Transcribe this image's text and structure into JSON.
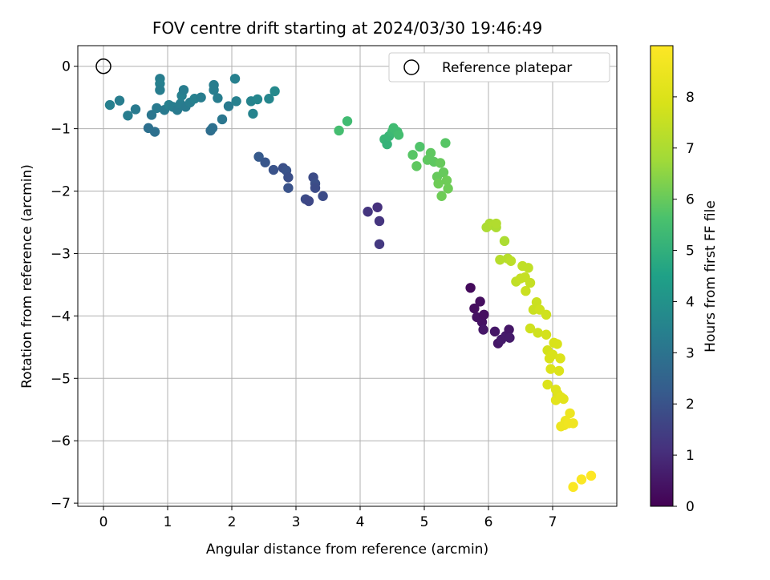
{
  "chart_data": {
    "type": "scatter",
    "title": "FOV centre drift starting at 2024/03/30 19:46:49",
    "xlabel": "Angular distance from reference (arcmin)",
    "ylabel": "Rotation from reference (arcmin)",
    "xlim": [
      -0.4,
      8.0
    ],
    "ylim": [
      -7.05,
      0.33
    ],
    "xticks": [
      0,
      1,
      2,
      3,
      4,
      5,
      6,
      7
    ],
    "yticks": [
      0,
      -1,
      -2,
      -3,
      -4,
      -5,
      -6,
      -7
    ],
    "grid": true,
    "legend": {
      "position": "top-right",
      "entries": [
        "Reference platepar"
      ]
    },
    "reference_point": {
      "x": 0,
      "y": 0,
      "marker": "hollow-circle"
    },
    "colorbar": {
      "label": "Hours from first FF file",
      "range": [
        0,
        9
      ],
      "ticks": [
        0,
        1,
        2,
        3,
        4,
        5,
        6,
        7,
        8
      ],
      "colormap": "viridis"
    },
    "points": [
      {
        "x": 0.1,
        "y": -0.62,
        "h": 3.4
      },
      {
        "x": 0.25,
        "y": -0.55,
        "h": 3.3
      },
      {
        "x": 0.38,
        "y": -0.79,
        "h": 3.3
      },
      {
        "x": 0.5,
        "y": -0.69,
        "h": 3.2
      },
      {
        "x": 0.7,
        "y": -0.99,
        "h": 2.9
      },
      {
        "x": 0.75,
        "y": -0.78,
        "h": 3.1
      },
      {
        "x": 0.8,
        "y": -1.05,
        "h": 2.9
      },
      {
        "x": 0.83,
        "y": -0.67,
        "h": 3.2
      },
      {
        "x": 0.88,
        "y": -0.2,
        "h": 3.3
      },
      {
        "x": 0.88,
        "y": -0.28,
        "h": 3.4
      },
      {
        "x": 0.88,
        "y": -0.38,
        "h": 3.3
      },
      {
        "x": 0.95,
        "y": -0.7,
        "h": 3.2
      },
      {
        "x": 1.02,
        "y": -0.62,
        "h": 3.4
      },
      {
        "x": 1.08,
        "y": -0.65,
        "h": 3.3
      },
      {
        "x": 1.15,
        "y": -0.7,
        "h": 3.2
      },
      {
        "x": 1.2,
        "y": -0.6,
        "h": 3.3
      },
      {
        "x": 1.22,
        "y": -0.47,
        "h": 3.4
      },
      {
        "x": 1.25,
        "y": -0.38,
        "h": 3.3
      },
      {
        "x": 1.28,
        "y": -0.65,
        "h": 3.2
      },
      {
        "x": 1.35,
        "y": -0.58,
        "h": 3.3
      },
      {
        "x": 1.42,
        "y": -0.52,
        "h": 3.4
      },
      {
        "x": 1.52,
        "y": -0.5,
        "h": 3.3
      },
      {
        "x": 1.67,
        "y": -1.03,
        "h": 2.8
      },
      {
        "x": 1.7,
        "y": -0.99,
        "h": 2.9
      },
      {
        "x": 1.72,
        "y": -0.3,
        "h": 3.3
      },
      {
        "x": 1.72,
        "y": -0.38,
        "h": 3.3
      },
      {
        "x": 1.78,
        "y": -0.51,
        "h": 3.3
      },
      {
        "x": 1.85,
        "y": -0.85,
        "h": 3.1
      },
      {
        "x": 1.95,
        "y": -0.64,
        "h": 3.2
      },
      {
        "x": 2.05,
        "y": -0.2,
        "h": 3.4
      },
      {
        "x": 2.07,
        "y": -0.56,
        "h": 3.4
      },
      {
        "x": 2.3,
        "y": -0.56,
        "h": 3.5
      },
      {
        "x": 2.33,
        "y": -0.76,
        "h": 3.5
      },
      {
        "x": 2.4,
        "y": -0.53,
        "h": 3.6
      },
      {
        "x": 2.58,
        "y": -0.52,
        "h": 3.6
      },
      {
        "x": 2.67,
        "y": -0.4,
        "h": 3.7
      },
      {
        "x": 2.42,
        "y": -1.45,
        "h": 2.2
      },
      {
        "x": 2.52,
        "y": -1.54,
        "h": 2.1
      },
      {
        "x": 2.65,
        "y": -1.66,
        "h": 2.0
      },
      {
        "x": 2.8,
        "y": -1.63,
        "h": 1.9
      },
      {
        "x": 2.85,
        "y": -1.67,
        "h": 2.0
      },
      {
        "x": 2.88,
        "y": -1.78,
        "h": 1.9
      },
      {
        "x": 2.88,
        "y": -1.95,
        "h": 2.0
      },
      {
        "x": 3.15,
        "y": -2.13,
        "h": 1.8
      },
      {
        "x": 3.2,
        "y": -2.16,
        "h": 1.7
      },
      {
        "x": 3.27,
        "y": -1.78,
        "h": 1.8
      },
      {
        "x": 3.3,
        "y": -1.88,
        "h": 1.9
      },
      {
        "x": 3.3,
        "y": -1.95,
        "h": 1.8
      },
      {
        "x": 3.42,
        "y": -2.08,
        "h": 1.8
      },
      {
        "x": 4.12,
        "y": -2.33,
        "h": 1.2
      },
      {
        "x": 4.27,
        "y": -2.26,
        "h": 1.1
      },
      {
        "x": 4.3,
        "y": -2.48,
        "h": 1.2
      },
      {
        "x": 4.3,
        "y": -2.85,
        "h": 1.3
      },
      {
        "x": 3.67,
        "y": -1.03,
        "h": 5.5
      },
      {
        "x": 3.8,
        "y": -0.88,
        "h": 5.4
      },
      {
        "x": 4.38,
        "y": -1.17,
        "h": 5.2
      },
      {
        "x": 4.42,
        "y": -1.25,
        "h": 5.1
      },
      {
        "x": 4.45,
        "y": -1.12,
        "h": 5.2
      },
      {
        "x": 4.5,
        "y": -1.05,
        "h": 5.3
      },
      {
        "x": 4.52,
        "y": -0.99,
        "h": 5.4
      },
      {
        "x": 4.58,
        "y": -1.05,
        "h": 5.4
      },
      {
        "x": 4.6,
        "y": -1.1,
        "h": 5.5
      },
      {
        "x": 4.82,
        "y": -1.42,
        "h": 5.8
      },
      {
        "x": 4.88,
        "y": -1.6,
        "h": 5.9
      },
      {
        "x": 4.93,
        "y": -1.29,
        "h": 5.7
      },
      {
        "x": 5.05,
        "y": -1.5,
        "h": 5.9
      },
      {
        "x": 5.1,
        "y": -1.39,
        "h": 5.9
      },
      {
        "x": 5.15,
        "y": -1.53,
        "h": 5.9
      },
      {
        "x": 5.2,
        "y": -1.77,
        "h": 6.0
      },
      {
        "x": 5.22,
        "y": -1.88,
        "h": 6.1
      },
      {
        "x": 5.25,
        "y": -1.55,
        "h": 6.0
      },
      {
        "x": 5.27,
        "y": -2.08,
        "h": 6.1
      },
      {
        "x": 5.3,
        "y": -1.7,
        "h": 6.0
      },
      {
        "x": 5.33,
        "y": -1.23,
        "h": 5.8
      },
      {
        "x": 5.35,
        "y": -1.83,
        "h": 6.1
      },
      {
        "x": 5.37,
        "y": -1.96,
        "h": 6.1
      },
      {
        "x": 5.72,
        "y": -3.55,
        "h": 0.2
      },
      {
        "x": 5.78,
        "y": -3.88,
        "h": 0.3
      },
      {
        "x": 5.82,
        "y": -4.02,
        "h": 0.4
      },
      {
        "x": 5.87,
        "y": -3.77,
        "h": 0.3
      },
      {
        "x": 5.9,
        "y": -4.1,
        "h": 0.4
      },
      {
        "x": 5.93,
        "y": -3.98,
        "h": 0.3
      },
      {
        "x": 5.92,
        "y": -4.22,
        "h": 0.5
      },
      {
        "x": 6.1,
        "y": -4.25,
        "h": 0.5
      },
      {
        "x": 6.15,
        "y": -4.44,
        "h": 0.5
      },
      {
        "x": 6.2,
        "y": -4.38,
        "h": 0.6
      },
      {
        "x": 6.27,
        "y": -4.32,
        "h": 0.6
      },
      {
        "x": 6.32,
        "y": -4.22,
        "h": 0.5
      },
      {
        "x": 6.33,
        "y": -4.35,
        "h": 0.6
      },
      {
        "x": 5.97,
        "y": -2.58,
        "h": 7.0
      },
      {
        "x": 6.02,
        "y": -2.52,
        "h": 7.0
      },
      {
        "x": 6.08,
        "y": -2.55,
        "h": 7.1
      },
      {
        "x": 6.12,
        "y": -2.58,
        "h": 7.0
      },
      {
        "x": 6.12,
        "y": -2.52,
        "h": 7.1
      },
      {
        "x": 6.18,
        "y": -3.1,
        "h": 7.2
      },
      {
        "x": 6.25,
        "y": -2.8,
        "h": 7.0
      },
      {
        "x": 6.3,
        "y": -3.08,
        "h": 7.2
      },
      {
        "x": 6.35,
        "y": -3.12,
        "h": 7.3
      },
      {
        "x": 6.43,
        "y": -3.45,
        "h": 7.4
      },
      {
        "x": 6.5,
        "y": -3.4,
        "h": 7.5
      },
      {
        "x": 6.53,
        "y": -3.2,
        "h": 7.4
      },
      {
        "x": 6.57,
        "y": -3.38,
        "h": 7.5
      },
      {
        "x": 6.58,
        "y": -3.6,
        "h": 7.6
      },
      {
        "x": 6.62,
        "y": -3.23,
        "h": 7.4
      },
      {
        "x": 6.65,
        "y": -3.47,
        "h": 7.5
      },
      {
        "x": 6.65,
        "y": -4.2,
        "h": 7.7
      },
      {
        "x": 6.7,
        "y": -3.9,
        "h": 7.6
      },
      {
        "x": 6.75,
        "y": -3.78,
        "h": 7.6
      },
      {
        "x": 6.77,
        "y": -4.27,
        "h": 7.7
      },
      {
        "x": 6.8,
        "y": -3.9,
        "h": 7.7
      },
      {
        "x": 6.9,
        "y": -3.98,
        "h": 7.7
      },
      {
        "x": 6.9,
        "y": -4.3,
        "h": 7.8
      },
      {
        "x": 6.92,
        "y": -4.55,
        "h": 7.8
      },
      {
        "x": 6.92,
        "y": -5.1,
        "h": 8.0
      },
      {
        "x": 6.95,
        "y": -4.68,
        "h": 7.9
      },
      {
        "x": 6.97,
        "y": -4.85,
        "h": 8.0
      },
      {
        "x": 7.0,
        "y": -4.62,
        "h": 7.9
      },
      {
        "x": 7.02,
        "y": -4.43,
        "h": 7.9
      },
      {
        "x": 7.07,
        "y": -4.45,
        "h": 7.9
      },
      {
        "x": 7.05,
        "y": -5.18,
        "h": 8.1
      },
      {
        "x": 7.05,
        "y": -5.35,
        "h": 8.2
      },
      {
        "x": 7.08,
        "y": -5.25,
        "h": 8.1
      },
      {
        "x": 7.1,
        "y": -4.88,
        "h": 8.0
      },
      {
        "x": 7.12,
        "y": -4.68,
        "h": 8.0
      },
      {
        "x": 7.13,
        "y": -5.3,
        "h": 8.2
      },
      {
        "x": 7.17,
        "y": -5.33,
        "h": 8.2
      },
      {
        "x": 7.13,
        "y": -5.77,
        "h": 8.5
      },
      {
        "x": 7.18,
        "y": -5.75,
        "h": 8.5
      },
      {
        "x": 7.2,
        "y": -5.68,
        "h": 8.5
      },
      {
        "x": 7.25,
        "y": -5.72,
        "h": 8.6
      },
      {
        "x": 7.27,
        "y": -5.56,
        "h": 8.5
      },
      {
        "x": 7.32,
        "y": -5.72,
        "h": 8.6
      },
      {
        "x": 7.32,
        "y": -6.74,
        "h": 8.9
      },
      {
        "x": 7.45,
        "y": -6.62,
        "h": 8.9
      },
      {
        "x": 7.6,
        "y": -6.56,
        "h": 9.0
      }
    ]
  }
}
